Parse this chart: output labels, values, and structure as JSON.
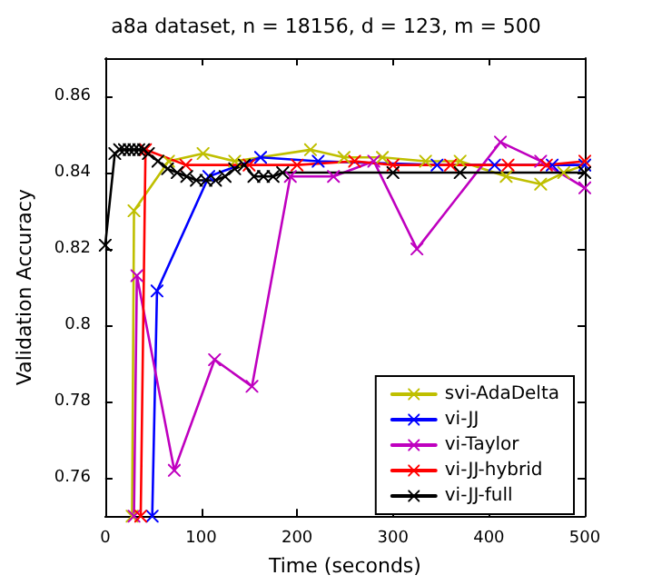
{
  "chart_data": {
    "type": "line",
    "title": "a8a dataset, n = 18156, d = 123, m = 500",
    "xlabel": "Time (seconds)",
    "ylabel": "Validation Accuracy",
    "xlim": [
      0,
      500
    ],
    "xticks": [
      0,
      100,
      200,
      300,
      400,
      500
    ],
    "ylim": [
      0.75,
      0.87
    ],
    "yticks": [
      0.76,
      0.78,
      0.8,
      0.82,
      0.84,
      0.86
    ],
    "grid": false,
    "legend": "bottom right",
    "marker": "cross",
    "line_style": "solid",
    "series": [
      {
        "name": "svi-AdaDelta",
        "color": "#bfbf00",
        "x": [
          28,
          30,
          66,
          102,
          135,
          214,
          249,
          289,
          334,
          370,
          418,
          454,
          478,
          500
        ],
        "values": [
          0.75,
          0.83,
          0.843,
          0.845,
          0.843,
          0.846,
          0.844,
          0.844,
          0.843,
          0.843,
          0.839,
          0.837,
          0.84,
          0.842
        ]
      },
      {
        "name": "vi-JJ",
        "color": "#0000ff",
        "x": [
          49,
          54,
          108,
          162,
          222,
          346,
          406,
          466,
          500
        ],
        "values": [
          0.75,
          0.809,
          0.839,
          0.844,
          0.843,
          0.842,
          0.842,
          0.842,
          0.842
        ]
      },
      {
        "name": "vi-Taylor",
        "color": "#bf00bf",
        "x": [
          30,
          33,
          72,
          114,
          153,
          193,
          238,
          280,
          325,
          412,
          454,
          500
        ],
        "values": [
          0.75,
          0.813,
          0.762,
          0.791,
          0.784,
          0.839,
          0.839,
          0.843,
          0.82,
          0.848,
          0.843,
          0.836
        ]
      },
      {
        "name": "vi-JJ-hybrid",
        "color": "#ff0000",
        "x": [
          37,
          42,
          84,
          150,
          200,
          260,
          300,
          360,
          420,
          460,
          500
        ],
        "values": [
          0.75,
          0.846,
          0.842,
          0.842,
          0.842,
          0.843,
          0.842,
          0.842,
          0.842,
          0.842,
          0.843
        ]
      },
      {
        "name": "vi-JJ-full",
        "color": "#000000",
        "x": [
          0,
          10,
          15,
          20,
          25,
          30,
          35,
          40,
          45,
          55,
          65,
          75,
          85,
          95,
          105,
          115,
          125,
          135,
          145,
          155,
          165,
          175,
          185,
          300,
          370,
          500
        ],
        "values": [
          0.821,
          0.845,
          0.846,
          0.846,
          0.846,
          0.846,
          0.846,
          0.846,
          0.845,
          0.843,
          0.841,
          0.84,
          0.839,
          0.838,
          0.838,
          0.838,
          0.839,
          0.841,
          0.842,
          0.839,
          0.839,
          0.839,
          0.84,
          0.84,
          0.84,
          0.84
        ]
      }
    ]
  }
}
